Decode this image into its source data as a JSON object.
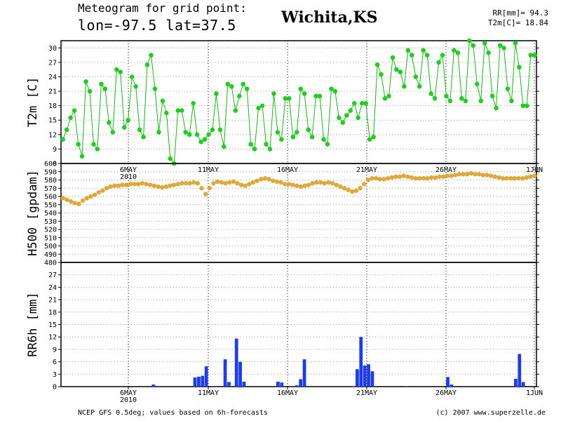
{
  "header": {
    "title_line1": "Meteogram for grid point:",
    "title_line2": "lon=-97.5 lat=37.5",
    "station": "Wichita,KS",
    "stat_rr": "RR[mm]= 94.3",
    "stat_t2m": "T2m[C]= 18.84"
  },
  "footer": {
    "source": "NCEP GFS 0.5deg; values based on 6h-forecasts",
    "copyright": "(c) 2007 www.superzelle.de"
  },
  "colors": {
    "t2m": "#22cc22",
    "t2m_line": "#19b319",
    "h500": "#e0a83a",
    "rr6h": "#1f3de0",
    "grid": "#999999"
  },
  "chart_data": [
    {
      "type": "line",
      "ylabel": "T2m [C]",
      "ylim": [
        6,
        31.5
      ],
      "yticks": [
        6,
        9,
        12,
        15,
        18,
        21,
        24,
        27,
        30
      ],
      "x_ticks": [
        "6MAY",
        "11MAY",
        "16MAY",
        "21MAY",
        "26MAY",
        "1JUN"
      ],
      "x_ticks_year": "2010",
      "grid": true,
      "series": [
        {
          "values": [
            11,
            13,
            15.5,
            17,
            10,
            7.5,
            23,
            21,
            10,
            9,
            22.5,
            21.5,
            14.5,
            12.5,
            25.5,
            25,
            13.5,
            15,
            24,
            22,
            13,
            11.5,
            26.5,
            28.5,
            21.5,
            12.5,
            19,
            16.5,
            7,
            6,
            17,
            17,
            12.5,
            12,
            18.5,
            12,
            10.5,
            11,
            12,
            13,
            20.5,
            13,
            9.5,
            22.5,
            22,
            17,
            20,
            22.5,
            21.5,
            10,
            9,
            17.5,
            18,
            10,
            9,
            20.5,
            12.5,
            11,
            19.5,
            19.5,
            11.5,
            12.5,
            21.5,
            20.5,
            13,
            11.5,
            20,
            20,
            11,
            10,
            21.5,
            21,
            15.5,
            14.5,
            16,
            17,
            18.5,
            15.5,
            18.5,
            18.5,
            11,
            11.5,
            26.5,
            24.5,
            19.5,
            20,
            28,
            25.5,
            25,
            22,
            29.5,
            28.5,
            24,
            22,
            29.5,
            28.5,
            20.5,
            19.5,
            27,
            28.5,
            20,
            19,
            29.5,
            29,
            19.5,
            19,
            31.5,
            30.5,
            22.5,
            19,
            31,
            29,
            20,
            17.5,
            30.5,
            30,
            21.5,
            19,
            31,
            26,
            18,
            18,
            28.5,
            28.5
          ]
        }
      ]
    },
    {
      "type": "scatter",
      "ylabel": "H500 [gpdam]",
      "ylim": [
        480,
        600
      ],
      "yticks": [
        480,
        490,
        500,
        510,
        520,
        530,
        540,
        550,
        560,
        570,
        580,
        590,
        600
      ],
      "x_ticks": [
        "6MAY",
        "11MAY",
        "16MAY",
        "21MAY",
        "26MAY",
        "1JUN"
      ],
      "x_ticks_year": "2010",
      "grid": true,
      "series": [
        {
          "values": [
            558,
            556,
            554,
            552,
            551,
            555,
            558,
            560,
            562,
            565,
            567,
            570,
            572,
            573,
            573,
            574,
            574,
            575,
            575,
            575,
            576,
            575,
            574,
            573,
            572,
            571,
            572,
            573,
            574,
            575,
            576,
            576,
            576,
            577,
            576,
            570,
            563,
            570,
            576,
            578,
            577,
            576,
            577,
            578,
            576,
            574,
            573,
            575,
            577,
            579,
            581,
            582,
            581,
            579,
            578,
            577,
            575,
            575,
            574,
            573,
            572,
            573,
            574,
            576,
            577,
            577,
            576,
            577,
            576,
            574,
            572,
            570,
            568,
            566,
            567,
            570,
            575,
            580,
            582,
            582,
            581,
            581,
            582,
            583,
            584,
            584,
            585,
            584,
            583,
            582,
            582,
            582,
            582,
            583,
            583,
            584,
            584,
            585,
            585,
            586,
            587,
            587,
            587,
            588,
            587,
            587,
            586,
            586,
            585,
            584,
            583,
            582,
            582,
            582,
            582,
            582,
            582,
            583,
            584,
            585
          ]
        }
      ]
    },
    {
      "type": "bar",
      "ylabel": "RR6h [mm]",
      "ylim": [
        0,
        30
      ],
      "yticks": [
        0,
        3,
        6,
        9,
        12,
        15,
        18,
        21,
        24,
        27
      ],
      "x_ticks": [
        "6MAY",
        "11MAY",
        "16MAY",
        "21MAY",
        "26MAY",
        "1JUN"
      ],
      "x_ticks_year": "2010",
      "grid": true,
      "series": [
        {
          "values": [
            0,
            0,
            0,
            0,
            0,
            0,
            0,
            0,
            0,
            0,
            0,
            0,
            0,
            0,
            0,
            0,
            0,
            0,
            0,
            0,
            0,
            0,
            0,
            0,
            0.5,
            0,
            0,
            0,
            0,
            0,
            0,
            0,
            0,
            0,
            0,
            2.2,
            2.4,
            2.6,
            4.9,
            0,
            0,
            0,
            0,
            6.6,
            1.1,
            0,
            11.6,
            6,
            1.2,
            0,
            0,
            0,
            0,
            0,
            0,
            0,
            0,
            1.2,
            1,
            0,
            0,
            0,
            0.3,
            1.8,
            6.6,
            0,
            0,
            0,
            0,
            0,
            0,
            0,
            0,
            0,
            0,
            0,
            0,
            0.1,
            4.2,
            12,
            5.1,
            5.4,
            3.7,
            0,
            0,
            0,
            0,
            0,
            0,
            0,
            0,
            0.1,
            0,
            0,
            0,
            0,
            0,
            0,
            0,
            0,
            0,
            0,
            2.3,
            0.5,
            0,
            0,
            0,
            0,
            0,
            0,
            0,
            0,
            0,
            0,
            0,
            0,
            0,
            0,
            0,
            0,
            1.9,
            7.9,
            1.1,
            0,
            0,
            0
          ]
        }
      ]
    }
  ]
}
